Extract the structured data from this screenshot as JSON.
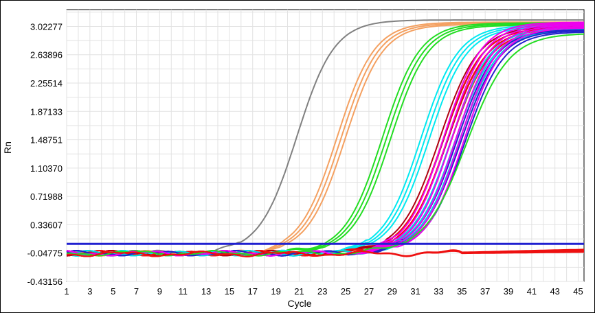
{
  "chart_data": {
    "type": "line",
    "title": "",
    "xlabel": "Cycle",
    "ylabel": "Rn",
    "xlim": [
      1,
      45.5
    ],
    "ylim": [
      -0.43156,
      3.25
    ],
    "grid": true,
    "x_ticks": [
      "1",
      "3",
      "5",
      "7",
      "9",
      "11",
      "13",
      "15",
      "17",
      "19",
      "21",
      "23",
      "25",
      "27",
      "29",
      "31",
      "33",
      "35",
      "37",
      "39",
      "41",
      "43",
      "45"
    ],
    "y_ticks": [
      "3.02277",
      "2.63896",
      "2.25514",
      "1.87133",
      "1.48751",
      "1.10370",
      "0.71988",
      "0.33607",
      "-0.04775",
      "-0.43156"
    ],
    "threshold": {
      "value": 0.078,
      "color": "#2020d0"
    },
    "series": [
      {
        "color": "#808080",
        "count": 1,
        "baseline": -0.05,
        "plateau": 3.11,
        "ct": 20.8,
        "k": 0.62
      },
      {
        "color": "#f4a060",
        "count": 3,
        "baseline": -0.05,
        "plateau": 3.08,
        "ct": 24.6,
        "k": 0.62
      },
      {
        "color": "#22dd22",
        "count": 3,
        "baseline": -0.05,
        "plateau": 3.07,
        "ct": 28.5,
        "k": 0.62
      },
      {
        "color": "#00e8f0",
        "count": 3,
        "baseline": -0.05,
        "plateau": 3.04,
        "ct": 31.8,
        "k": 0.62
      },
      {
        "color": "#b00010",
        "count": 3,
        "baseline": -0.05,
        "plateau": 3.02,
        "ct": 33.4,
        "k": 0.6
      },
      {
        "color": "#ee1010",
        "count": 3,
        "baseline": -0.05,
        "plateau": 3.0,
        "ct": 33.7,
        "k": 0.6
      },
      {
        "color": "#00d8e0",
        "count": 3,
        "baseline": -0.05,
        "plateau": 3.0,
        "ct": 34.4,
        "k": 0.6
      },
      {
        "color": "#2222cc",
        "count": 3,
        "baseline": -0.05,
        "plateau": 2.98,
        "ct": 34.9,
        "k": 0.6
      },
      {
        "color": "#ee00ee",
        "count": 6,
        "baseline": -0.05,
        "plateau": 3.08,
        "ct": 34.3,
        "k": 0.62
      },
      {
        "color": "#22dd22",
        "count": 1,
        "baseline": -0.05,
        "plateau": 2.93,
        "ct": 35.4,
        "k": 0.55
      },
      {
        "color": "#ee1010",
        "count": 4,
        "baseline": -0.06,
        "plateau": 0.02,
        "ct": 40,
        "k": 0.2
      }
    ]
  }
}
